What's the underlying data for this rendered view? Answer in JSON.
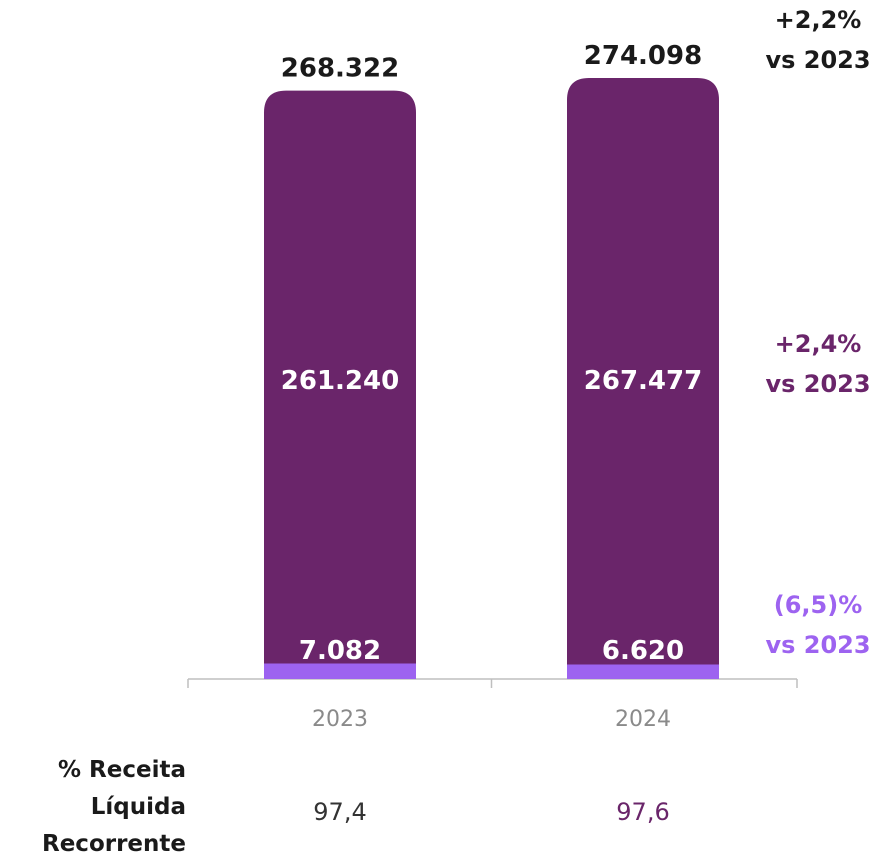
{
  "chart_data": {
    "type": "bar",
    "stacked": true,
    "categories": [
      "2023",
      "2024"
    ],
    "series": [
      {
        "values": [
          261240,
          267477
        ],
        "labels": [
          "261.240",
          "267.477"
        ],
        "color": "#6a256a"
      },
      {
        "values": [
          7082,
          6620
        ],
        "labels": [
          "7.082",
          "6.620"
        ],
        "color": "#9d63f0"
      }
    ],
    "totals": {
      "values": [
        268322,
        274098
      ],
      "labels": [
        "268.322",
        "274.098"
      ]
    },
    "changes": [
      {
        "line1": "+2,2%",
        "line2": "vs 2023",
        "color": "#1a1a1a"
      },
      {
        "line1": "+2,4%",
        "line2": "vs 2023",
        "color": "#6a256a"
      },
      {
        "line1": "(6,5)%",
        "line2": "vs 2023",
        "color": "#9d63f0"
      }
    ],
    "recurring_share": {
      "label_lines": [
        "% Receita",
        "Líquida",
        "Recorrente"
      ],
      "values": [
        97.4,
        97.6
      ],
      "labels": [
        "97,4",
        "97,6"
      ],
      "colors": [
        "#333333",
        "#6a256a"
      ]
    },
    "axis_color": "#bfbfbf",
    "ylim": [
      0,
      274098
    ],
    "grid": false
  }
}
